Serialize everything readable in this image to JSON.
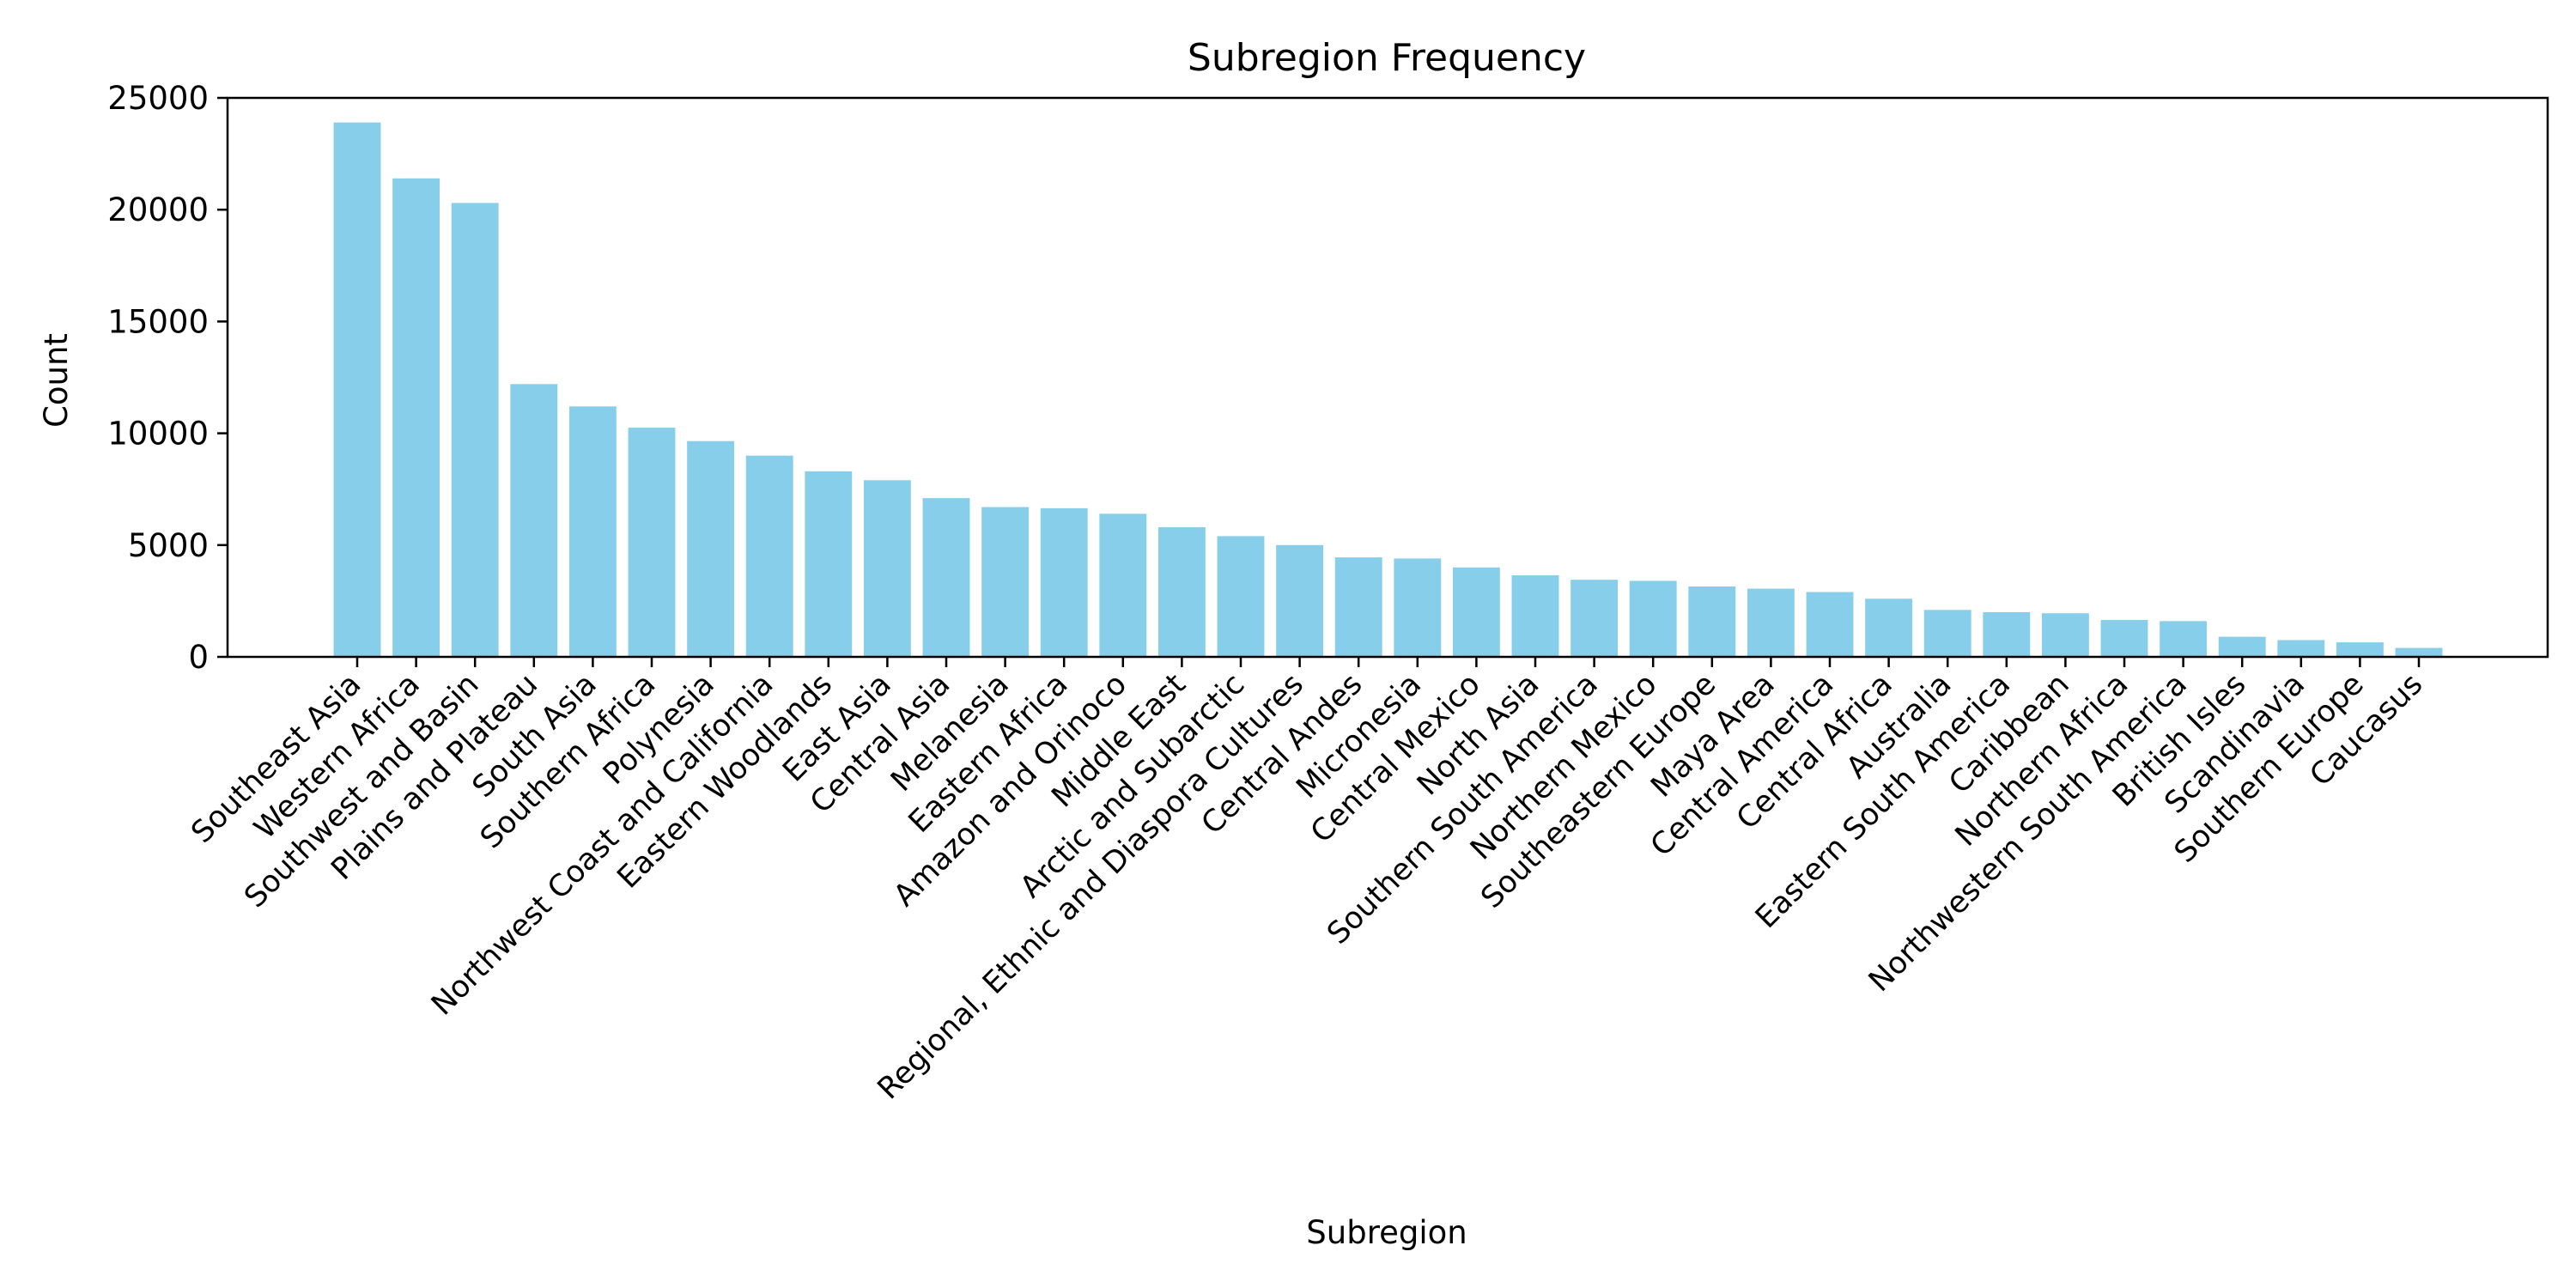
{
  "chart_data": {
    "type": "bar",
    "title": "Subregion Frequency",
    "xlabel": "Subregion",
    "ylabel": "Count",
    "ylim": [
      0,
      25000
    ],
    "yticks": [
      0,
      5000,
      10000,
      15000,
      20000,
      25000
    ],
    "ytick_labels": [
      "0",
      "5000",
      "10000",
      "15000",
      "20000",
      "25000"
    ],
    "grid": false,
    "bar_color": "#87CEEB",
    "categories": [
      "Southeast Asia",
      "Western Africa",
      "Southwest and Basin",
      "Plains and Plateau",
      "South Asia",
      "Southern Africa",
      "Polynesia",
      "Northwest Coast and California",
      "Eastern Woodlands",
      "East Asia",
      "Central Asia",
      "Melanesia",
      "Eastern Africa",
      "Amazon and Orinoco",
      "Middle East",
      "Arctic and Subarctic",
      "Regional, Ethnic and Diaspora Cultures",
      "Central Andes",
      "Micronesia",
      "Central Mexico",
      "North Asia",
      "Southern South America",
      "Northern Mexico",
      "Southeastern Europe",
      "Maya Area",
      "Central America",
      "Central Africa",
      "Australia",
      "Eastern South America",
      "Caribbean",
      "Northern Africa",
      "Northwestern South America",
      "British Isles",
      "Scandinavia",
      "Southern Europe",
      "Caucasus"
    ],
    "values": [
      23900,
      21400,
      20300,
      12200,
      11200,
      10250,
      9650,
      9000,
      8300,
      7900,
      7100,
      6700,
      6650,
      6400,
      5800,
      5400,
      5000,
      4450,
      4400,
      4000,
      3650,
      3450,
      3400,
      3150,
      3050,
      2900,
      2600,
      2100,
      2000,
      1950,
      1650,
      1600,
      900,
      750,
      650,
      400
    ]
  }
}
